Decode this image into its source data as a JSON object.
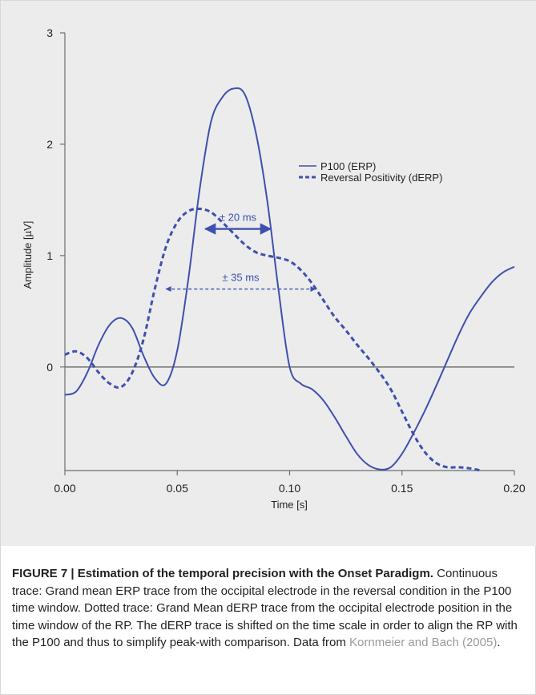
{
  "chart_data": {
    "type": "line",
    "xlabel": "Time [s]",
    "ylabel": "Amplitude [µV]",
    "xlim": [
      0,
      0.2
    ],
    "ylim": [
      -0.93,
      3
    ],
    "x_ticks": [
      0,
      0.05,
      0.1,
      0.15,
      0.2
    ],
    "x_tick_labels": [
      "0.00",
      "0.05",
      "0.10",
      "0.15",
      "0.20"
    ],
    "y_ticks": [
      0,
      1,
      2,
      3
    ],
    "y_tick_labels": [
      "0",
      "1",
      "2",
      "3"
    ],
    "grid": false,
    "zero_line": true,
    "legend_position": "upper-right",
    "series": [
      {
        "name": "P100 (ERP)",
        "style": "solid",
        "color": "#3f4fae",
        "x": [
          0,
          0.005,
          0.01,
          0.015,
          0.02,
          0.025,
          0.03,
          0.035,
          0.04,
          0.045,
          0.05,
          0.055,
          0.06,
          0.065,
          0.07,
          0.075,
          0.08,
          0.085,
          0.09,
          0.095,
          0.1,
          0.105,
          0.11,
          0.115,
          0.12,
          0.125,
          0.13,
          0.135,
          0.14,
          0.145,
          0.15,
          0.155,
          0.16,
          0.165,
          0.17,
          0.175,
          0.18,
          0.185,
          0.19,
          0.195,
          0.2
        ],
        "y": [
          -0.25,
          -0.22,
          -0.05,
          0.2,
          0.38,
          0.44,
          0.35,
          0.1,
          -0.1,
          -0.15,
          0.15,
          0.8,
          1.6,
          2.2,
          2.42,
          2.5,
          2.45,
          2.1,
          1.5,
          0.7,
          0.0,
          -0.15,
          -0.2,
          -0.3,
          -0.45,
          -0.62,
          -0.78,
          -0.88,
          -0.92,
          -0.9,
          -0.78,
          -0.6,
          -0.4,
          -0.18,
          0.05,
          0.28,
          0.48,
          0.63,
          0.76,
          0.85,
          0.9
        ]
      },
      {
        "name": "Reversal Positivity (dERP)",
        "style": "dashed",
        "color": "#3f4fae",
        "x": [
          0,
          0.005,
          0.01,
          0.015,
          0.02,
          0.025,
          0.03,
          0.035,
          0.04,
          0.045,
          0.05,
          0.055,
          0.06,
          0.065,
          0.07,
          0.075,
          0.08,
          0.085,
          0.09,
          0.095,
          0.1,
          0.105,
          0.11,
          0.115,
          0.12,
          0.125,
          0.13,
          0.135,
          0.14,
          0.145,
          0.15,
          0.155,
          0.16,
          0.165,
          0.17,
          0.175,
          0.18,
          0.185
        ],
        "y": [
          0.11,
          0.14,
          0.08,
          -0.05,
          -0.15,
          -0.18,
          -0.05,
          0.25,
          0.7,
          1.08,
          1.3,
          1.4,
          1.42,
          1.39,
          1.3,
          1.2,
          1.1,
          1.03,
          1.0,
          0.98,
          0.95,
          0.87,
          0.75,
          0.6,
          0.45,
          0.33,
          0.2,
          0.08,
          -0.05,
          -0.2,
          -0.4,
          -0.6,
          -0.76,
          -0.86,
          -0.9,
          -0.9,
          -0.91,
          -0.93
        ]
      }
    ],
    "annotations": [
      {
        "text": "± 20 ms",
        "x_start": 0.0625,
        "x_end": 0.0915,
        "y": 1.24
      },
      {
        "text": "± 35 ms",
        "x_start": 0.045,
        "x_end": 0.1115,
        "y": 0.7
      }
    ]
  },
  "caption": {
    "title": "FIGURE 7 | Estimation of the temporal precision with the Onset Paradigm.",
    "body": " Continuous trace: Grand mean ERP trace from the occipital electrode in the reversal condition in the P100 time window. Dotted trace: Grand Mean dERP trace from the occipital electrode position in the time window of the RP. The dERP trace is shifted on the time scale in order to align the RP with the P100 and thus to simplify peak-with comparison. Data from ",
    "citation": "Kornmeier and Bach (2005)",
    "end": "."
  }
}
